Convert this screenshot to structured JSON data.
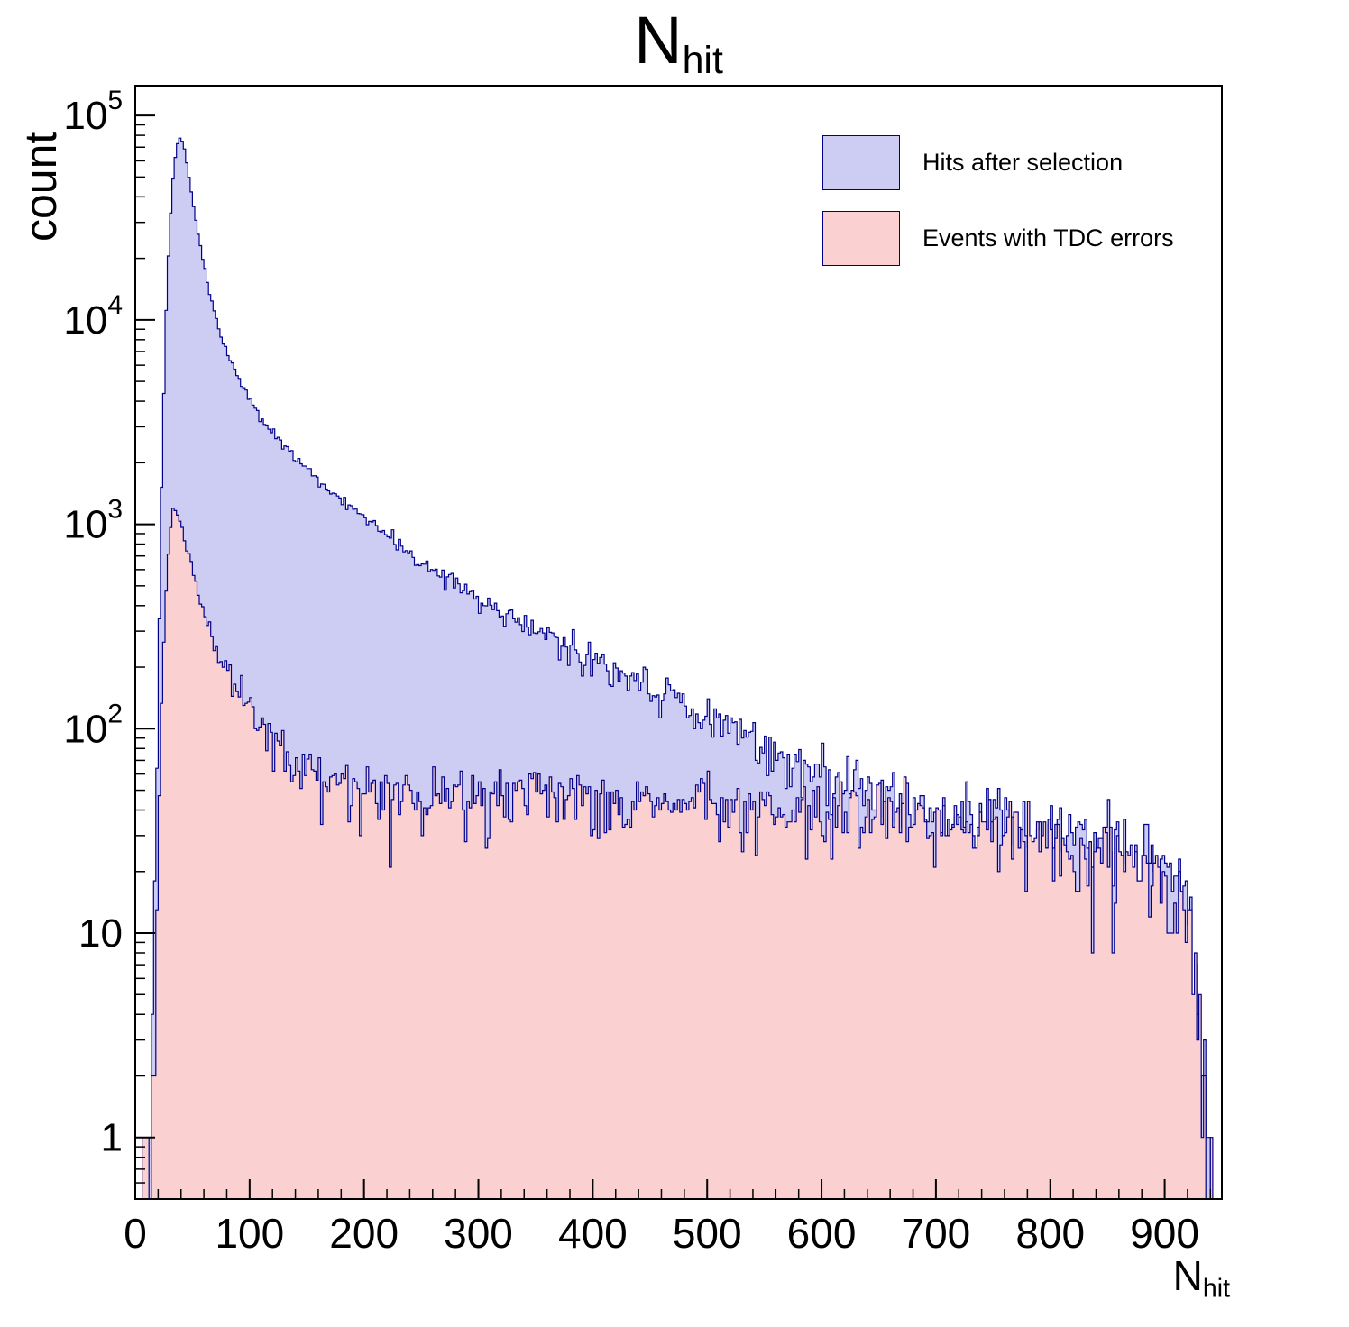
{
  "chart_data": {
    "type": "area",
    "subtype": "step-filled-histogram-log-y",
    "title_main": "N",
    "title_sub": "hit",
    "ylabel": "count",
    "xlabel_main": "N",
    "xlabel_sub": "hit",
    "x_range": [
      0,
      950
    ],
    "y_range_log": [
      0.5,
      140000
    ],
    "x_major_ticks": [
      0,
      100,
      200,
      300,
      400,
      500,
      600,
      700,
      800,
      900
    ],
    "x_minor_step": 20,
    "y_major_ticks": [
      1,
      10,
      100,
      1000,
      10000,
      100000
    ],
    "grid": false,
    "legend_position": "top-right",
    "bin_width": 2,
    "data_x_start": 0,
    "data_x_end": 944,
    "noise_seed": 20240611,
    "frame_color": "#000000",
    "series": [
      {
        "name": "Hits after selection",
        "fill": "#cdcdf4",
        "line": "#00008b",
        "anchors": [
          [
            4,
            0.15
          ],
          [
            10,
            0.3
          ],
          [
            14,
            2
          ],
          [
            18,
            30
          ],
          [
            22,
            800
          ],
          [
            26,
            8000
          ],
          [
            30,
            28000
          ],
          [
            34,
            58000
          ],
          [
            38,
            78000
          ],
          [
            42,
            74000
          ],
          [
            48,
            46000
          ],
          [
            55,
            26000
          ],
          [
            65,
            13500
          ],
          [
            75,
            8200
          ],
          [
            90,
            5200
          ],
          [
            110,
            3300
          ],
          [
            130,
            2400
          ],
          [
            150,
            1850
          ],
          [
            175,
            1380
          ],
          [
            200,
            1060
          ],
          [
            225,
            830
          ],
          [
            250,
            660
          ],
          [
            275,
            540
          ],
          [
            300,
            440
          ],
          [
            325,
            365
          ],
          [
            350,
            305
          ],
          [
            375,
            258
          ],
          [
            400,
            218
          ],
          [
            425,
            186
          ],
          [
            450,
            158
          ],
          [
            475,
            132
          ],
          [
            500,
            112
          ],
          [
            525,
            96
          ],
          [
            550,
            82
          ],
          [
            575,
            70
          ],
          [
            600,
            60
          ],
          [
            625,
            53
          ],
          [
            650,
            47
          ],
          [
            675,
            43
          ],
          [
            700,
            39
          ],
          [
            725,
            36
          ],
          [
            750,
            33
          ],
          [
            775,
            31
          ],
          [
            800,
            29
          ],
          [
            825,
            27
          ],
          [
            850,
            25
          ],
          [
            875,
            23
          ],
          [
            900,
            21
          ],
          [
            910,
            18
          ],
          [
            918,
            12
          ],
          [
            925,
            6
          ],
          [
            932,
            2
          ],
          [
            938,
            0.7
          ],
          [
            942,
            0.2
          ]
        ]
      },
      {
        "name": "Events with TDC errors",
        "fill": "#fbd0d0",
        "line": "#00008b",
        "anchors": [
          [
            4,
            0.1
          ],
          [
            10,
            0.25
          ],
          [
            14,
            1
          ],
          [
            18,
            10
          ],
          [
            22,
            90
          ],
          [
            26,
            400
          ],
          [
            30,
            900
          ],
          [
            34,
            1250
          ],
          [
            38,
            1150
          ],
          [
            44,
            800
          ],
          [
            52,
            520
          ],
          [
            62,
            340
          ],
          [
            75,
            225
          ],
          [
            90,
            155
          ],
          [
            105,
            115
          ],
          [
            120,
            90
          ],
          [
            140,
            70
          ],
          [
            160,
            60
          ],
          [
            180,
            54
          ],
          [
            200,
            50
          ],
          [
            250,
            46
          ],
          [
            300,
            46
          ],
          [
            350,
            48
          ],
          [
            400,
            46
          ],
          [
            450,
            44
          ],
          [
            500,
            42
          ],
          [
            550,
            41
          ],
          [
            600,
            39
          ],
          [
            650,
            41
          ],
          [
            700,
            35
          ],
          [
            725,
            33
          ],
          [
            750,
            31
          ],
          [
            775,
            30
          ],
          [
            800,
            28
          ],
          [
            825,
            26
          ],
          [
            850,
            24
          ],
          [
            875,
            22
          ],
          [
            900,
            20
          ],
          [
            910,
            16
          ],
          [
            918,
            11
          ],
          [
            925,
            5
          ],
          [
            932,
            1.5
          ],
          [
            938,
            0.5
          ],
          [
            942,
            0.15
          ]
        ]
      }
    ]
  }
}
